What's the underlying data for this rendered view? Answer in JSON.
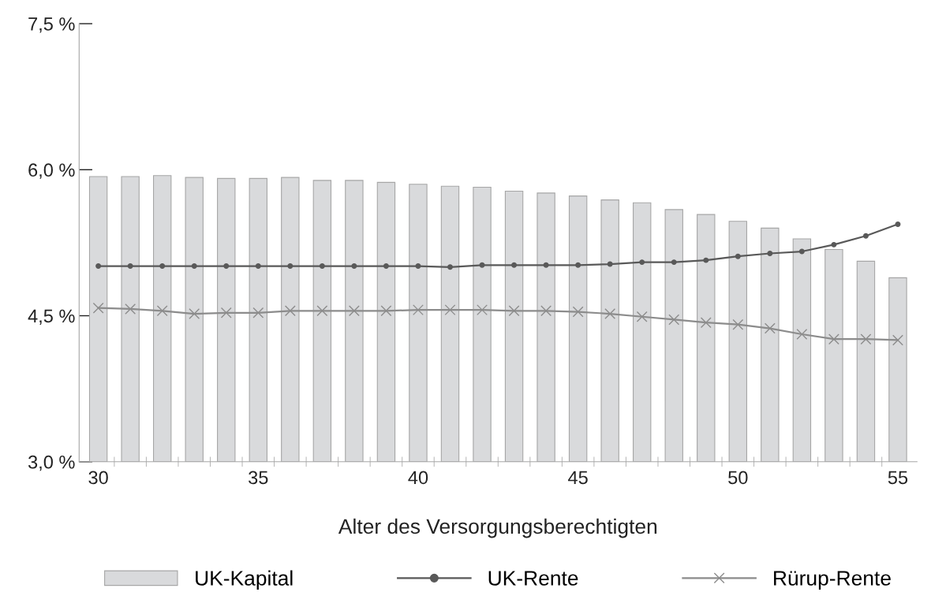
{
  "chart_data": {
    "type": "bar",
    "xlabel": "Alter des Versorgungsberechtigten",
    "categories": [
      "30",
      null,
      null,
      null,
      null,
      "35",
      null,
      null,
      null,
      null,
      "40",
      null,
      null,
      null,
      null,
      "45",
      null,
      null,
      null,
      null,
      "50",
      null,
      null,
      null,
      null,
      "55"
    ],
    "series": [
      {
        "name": "UK-Kapital",
        "color": "#d9dadc",
        "values": [
          5.93,
          5.93,
          5.94,
          5.92,
          5.91,
          5.91,
          5.92,
          5.89,
          5.89,
          5.87,
          5.85,
          5.83,
          5.82,
          5.78,
          5.76,
          5.73,
          5.69,
          5.66,
          5.59,
          5.54,
          5.47,
          5.4,
          5.29,
          5.18,
          5.06,
          4.89
        ]
      },
      {
        "name": "UK-Rente",
        "type": "line",
        "marker": "circle",
        "color": "#595959",
        "values": [
          5.01,
          5.01,
          5.01,
          5.01,
          5.01,
          5.01,
          5.01,
          5.01,
          5.01,
          5.01,
          5.01,
          5.0,
          5.02,
          5.02,
          5.02,
          5.02,
          5.03,
          5.05,
          5.05,
          5.07,
          5.11,
          5.14,
          5.16,
          5.23,
          5.32,
          5.44
        ]
      },
      {
        "name": "Rürup-Rente",
        "type": "line",
        "marker": "cross",
        "color": "#8c8c8c",
        "values": [
          4.58,
          4.57,
          4.55,
          4.52,
          4.53,
          4.53,
          4.55,
          4.55,
          4.55,
          4.55,
          4.56,
          4.56,
          4.56,
          4.55,
          4.55,
          4.54,
          4.52,
          4.49,
          4.46,
          4.43,
          4.41,
          4.37,
          4.31,
          4.26,
          4.26,
          4.25
        ]
      }
    ],
    "ylim": [
      3.0,
      7.5
    ],
    "yticks": [
      {
        "value": 3.0,
        "label": "3,0 %"
      },
      {
        "value": 4.5,
        "label": "4,5 %"
      },
      {
        "value": 6.0,
        "label": "6,0 %"
      },
      {
        "value": 7.5,
        "label": "7,5 %"
      }
    ],
    "grid": false,
    "legend": "bottom"
  }
}
